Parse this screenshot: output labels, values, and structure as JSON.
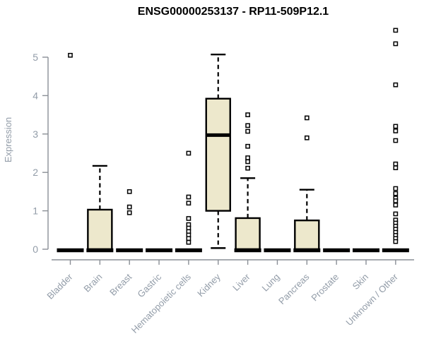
{
  "page": {
    "background": "#FFFFFF"
  },
  "chart_data": {
    "type": "boxplot",
    "title": "ENSG00000253137 - RP11-509P12.1",
    "ylabel": "Expression",
    "xlabel": "",
    "ylim": [
      0,
      5
    ],
    "yticks": [
      0,
      1,
      2,
      3,
      4,
      5
    ],
    "grid": false,
    "legend": null,
    "categories": [
      "Bladder",
      "Brain",
      "Breast",
      "Gastric",
      "Hematopoietic cells",
      "Kidney",
      "Liver",
      "Lung",
      "Pancreas",
      "Prostate",
      "Skin",
      "Unknown / Other"
    ],
    "boxes": [
      {
        "category": "Bladder",
        "low": 0,
        "q1": 0,
        "median": 0,
        "q3": 0,
        "high": 0,
        "outliers": [
          5.05
        ]
      },
      {
        "category": "Brain",
        "low": 0,
        "q1": 0,
        "median": 0,
        "q3": 1.03,
        "high": 2.17,
        "outliers": []
      },
      {
        "category": "Breast",
        "low": 0,
        "q1": 0,
        "median": 0,
        "q3": 0,
        "high": 0,
        "outliers": [
          1.5,
          1.1,
          0.95
        ]
      },
      {
        "category": "Gastric",
        "low": 0,
        "q1": 0,
        "median": 0,
        "q3": 0,
        "high": 0,
        "outliers": []
      },
      {
        "category": "Hematopoietic cells",
        "low": 0,
        "q1": 0,
        "median": 0,
        "q3": 0,
        "high": 0,
        "outliers": [
          2.5,
          1.36,
          1.2,
          0.8,
          0.64,
          0.55,
          0.46,
          0.37,
          0.28,
          0.18
        ]
      },
      {
        "category": "Kidney",
        "low": 0.03,
        "q1": 1.0,
        "median": 2.97,
        "q3": 3.92,
        "high": 5.07,
        "outliers": []
      },
      {
        "category": "Liver",
        "low": 0,
        "q1": 0,
        "median": 0,
        "q3": 0.81,
        "high": 1.85,
        "outliers": [
          3.5,
          3.22,
          3.07,
          2.68,
          2.38,
          2.28,
          2.11
        ]
      },
      {
        "category": "Lung",
        "low": 0,
        "q1": 0,
        "median": 0,
        "q3": 0,
        "high": 0,
        "outliers": []
      },
      {
        "category": "Pancreas",
        "low": 0,
        "q1": 0,
        "median": 0,
        "q3": 0.75,
        "high": 1.55,
        "outliers": [
          3.42,
          2.9
        ]
      },
      {
        "category": "Prostate",
        "low": 0,
        "q1": 0,
        "median": 0,
        "q3": 0,
        "high": 0,
        "outliers": []
      },
      {
        "category": "Skin",
        "low": 0,
        "q1": 0,
        "median": 0,
        "q3": 0,
        "high": 0,
        "outliers": []
      },
      {
        "category": "Unknown / Other",
        "low": 0,
        "q1": 0,
        "median": 0,
        "q3": 0,
        "high": 0,
        "outliers": [
          5.7,
          5.35,
          4.28,
          3.2,
          3.08,
          2.83,
          2.22,
          2.12,
          1.58,
          1.45,
          1.33,
          1.26,
          1.15,
          0.92,
          0.76,
          0.68,
          0.6,
          0.52,
          0.44,
          0.36,
          0.28,
          0.2
        ]
      }
    ],
    "colors": {
      "box_fill": "#EDE8CC",
      "box_stroke": "#000000",
      "median": "#000000",
      "whisker": "#000000",
      "outlier_fill": "#FFFFFF",
      "outlier_stroke": "#000000",
      "axis": "#8A8F96",
      "tick_label": "#929CA8",
      "title": "#000000"
    }
  }
}
